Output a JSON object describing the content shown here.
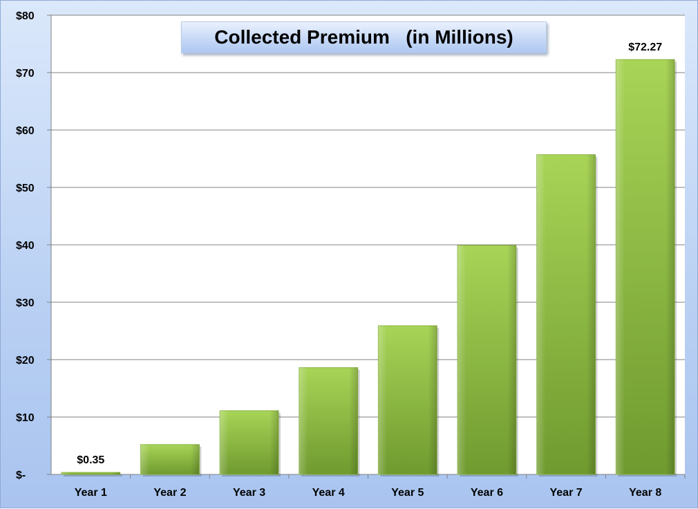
{
  "chart_data": {
    "type": "bar",
    "title": "Collected Premium   (in Millions)",
    "categories": [
      "Year 1",
      "Year 2",
      "Year 3",
      "Year 4",
      "Year 5",
      "Year 6",
      "Year 7",
      "Year 8"
    ],
    "values": [
      0.35,
      5.2,
      11.1,
      18.6,
      25.9,
      39.9,
      55.7,
      72.27
    ],
    "data_labels": [
      "$0.35",
      "",
      "",
      "",
      "",
      "",
      "",
      "$72.27"
    ],
    "y_ticks": [
      0,
      10,
      20,
      30,
      40,
      50,
      60,
      70,
      80
    ],
    "y_tick_labels": [
      "$-",
      "$10",
      "$20",
      "$30",
      "$40",
      "$50",
      "$60",
      "$70",
      "$80"
    ],
    "ylim": [
      0,
      80
    ],
    "xlabel": "",
    "ylabel": "",
    "grid": true,
    "legend": false,
    "colors": {
      "bar_top": "#a8d457",
      "bar_bottom": "#6f9a2f",
      "plot_background": "#ffffff",
      "gridline": "#808080",
      "frame_background": "#c6d9f5"
    }
  }
}
